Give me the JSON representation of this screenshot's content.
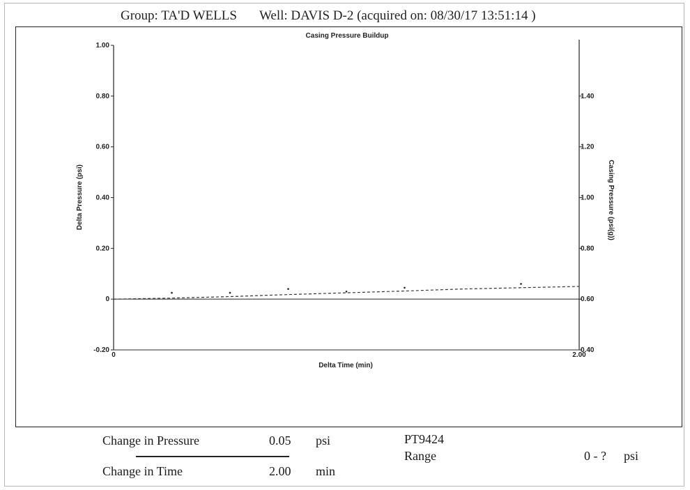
{
  "header": {
    "group_text": "Group: TA'D WELLS",
    "well_text": "Well: DAVIS D-2 (acquired on: 08/30/17 13:51:14 )"
  },
  "chart_data": {
    "type": "line",
    "title": "Casing Pressure Buildup",
    "xlabel": "Delta Time (min)",
    "ylabel": "Delta Pressure (psi)",
    "y2label": "Casing Pressure (psi(g))",
    "xlim": [
      0,
      2.0
    ],
    "ylim": [
      -0.2,
      1.0
    ],
    "y2lim": [
      0.4,
      1.6
    ],
    "x_ticks": [
      "0",
      "2.00"
    ],
    "y_ticks": [
      {
        "value": 1.0,
        "label": "1.00"
      },
      {
        "value": 0.8,
        "label": "0.80"
      },
      {
        "value": 0.6,
        "label": "0.60"
      },
      {
        "value": 0.4,
        "label": "0.40"
      },
      {
        "value": 0.2,
        "label": "0.20"
      },
      {
        "value": 0.0,
        "label": "0"
      },
      {
        "value": -0.2,
        "label": "-0.20"
      }
    ],
    "y2_ticks": [
      {
        "value": 1.4,
        "label": "1.40"
      },
      {
        "value": 1.2,
        "label": "1.20"
      },
      {
        "value": 1.0,
        "label": "1.00"
      },
      {
        "value": 0.8,
        "label": "0.80"
      },
      {
        "value": 0.6,
        "label": "0.60"
      },
      {
        "value": 0.4,
        "label": "0.40"
      }
    ],
    "grid": false,
    "series": [
      {
        "style": "dashed",
        "x": [
          0.0,
          0.25,
          0.5,
          0.75,
          1.0,
          1.25,
          1.5,
          1.75,
          2.0
        ],
        "y": [
          0.0,
          0.004,
          0.01,
          0.018,
          0.025,
          0.032,
          0.04,
          0.045,
          0.05
        ]
      },
      {
        "style": "points",
        "x": [
          0.25,
          0.5,
          0.75,
          1.0,
          1.25,
          1.75
        ],
        "y": [
          0.025,
          0.025,
          0.04,
          0.03,
          0.045,
          0.06
        ]
      }
    ],
    "colors": {
      "axes": "#222222",
      "series_line": "#333333"
    }
  },
  "summary": {
    "pressure_label": "Change in Pressure",
    "pressure_value": "0.05",
    "pressure_unit": "psi",
    "time_label": "Change in Time",
    "time_value": "2.00",
    "time_unit": "min",
    "gauge_id": "PT9424",
    "range_label": "Range",
    "range_value": "0 - ?",
    "range_unit": "psi"
  }
}
